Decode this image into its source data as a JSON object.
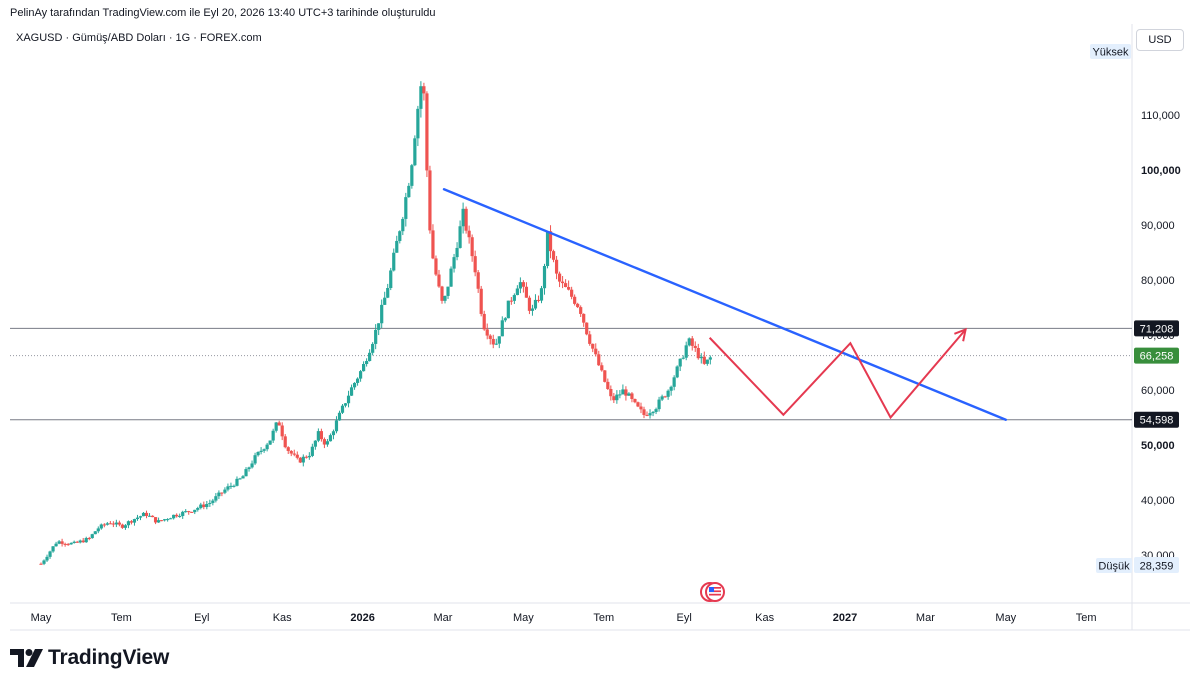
{
  "header": {
    "attribution": "PelinAy tarafından TradingView.com ile Eyl 20, 2026 13:40 UTC+3 tarihinde oluşturuldu",
    "symbol": "XAGUSD · Gümüş/ABD Doları · 1G · FOREX.com"
  },
  "currency_button": "USD",
  "logo_text": "TradingView",
  "colors": {
    "up": "#26a69a",
    "down": "#ef5350",
    "trendline": "#2962ff",
    "projection": "#e53950",
    "level_line": "#787b86",
    "last_price_bg": "#388e3c"
  },
  "chart_data": {
    "type": "candlestick",
    "y_axis": {
      "range": [
        24000,
        125000
      ],
      "ticks": [
        "30,000",
        "40,000",
        "50,000",
        "60,000",
        "70,000",
        "80,000",
        "90,000",
        "100,000",
        "110,000"
      ],
      "tick_values": [
        30000,
        40000,
        50000,
        60000,
        70000,
        80000,
        90000,
        100000,
        110000
      ],
      "bold_ticks": [
        "50,000",
        "100,000"
      ]
    },
    "x_axis": {
      "ticks": [
        "May",
        "Tem",
        "Eyl",
        "Kas",
        "2026",
        "Mar",
        "May",
        "Tem",
        "Eyl",
        "Kas",
        "2027",
        "Mar",
        "May",
        "Tem"
      ],
      "tick_months": [
        0,
        2,
        4,
        6,
        8,
        10,
        12,
        14,
        16,
        18,
        20,
        22,
        24,
        26
      ],
      "bold_ticks": [
        "2026",
        "2027"
      ],
      "start": "2025-05"
    },
    "price_series": [
      [
        0,
        28.4
      ],
      [
        0.4,
        32.5
      ],
      [
        0.8,
        32.0
      ],
      [
        1.2,
        33.0
      ],
      [
        1.4,
        34.8
      ],
      [
        1.7,
        36.0
      ],
      [
        2.0,
        35.2
      ],
      [
        2.3,
        36.5
      ],
      [
        2.6,
        37.5
      ],
      [
        2.9,
        36.0
      ],
      [
        3.3,
        37.2
      ],
      [
        3.7,
        38.0
      ],
      [
        4.2,
        39.5
      ],
      [
        4.6,
        42.0
      ],
      [
        5.0,
        44.0
      ],
      [
        5.3,
        47.5
      ],
      [
        5.7,
        51.0
      ],
      [
        5.9,
        54.5
      ],
      [
        6.1,
        49.5
      ],
      [
        6.4,
        47.0
      ],
      [
        6.7,
        48.5
      ],
      [
        6.9,
        52.0
      ],
      [
        7.1,
        50.0
      ],
      [
        7.4,
        55.0
      ],
      [
        7.7,
        60.0
      ],
      [
        8.0,
        64.0
      ],
      [
        8.3,
        70.0
      ],
      [
        8.6,
        78.0
      ],
      [
        8.8,
        85.0
      ],
      [
        9.0,
        92.0
      ],
      [
        9.2,
        100.0
      ],
      [
        9.35,
        110.0
      ],
      [
        9.5,
        118.0
      ],
      [
        9.6,
        100.0
      ],
      [
        9.7,
        86.0
      ],
      [
        9.85,
        80.0
      ],
      [
        10.0,
        75.0
      ],
      [
        10.3,
        85.0
      ],
      [
        10.5,
        92.0
      ],
      [
        10.8,
        82.0
      ],
      [
        11.0,
        72.0
      ],
      [
        11.3,
        68.0
      ],
      [
        11.6,
        75.0
      ],
      [
        11.9,
        80.0
      ],
      [
        12.2,
        74.0
      ],
      [
        12.45,
        78.0
      ],
      [
        12.6,
        88.0
      ],
      [
        12.85,
        80.0
      ],
      [
        13.1,
        78.0
      ],
      [
        13.4,
        75.0
      ],
      [
        13.6,
        70.0
      ],
      [
        13.8,
        66.0
      ],
      [
        14.0,
        62.0
      ],
      [
        14.2,
        58.0
      ],
      [
        14.5,
        60.0
      ],
      [
        14.8,
        57.0
      ],
      [
        15.0,
        55.5
      ],
      [
        15.3,
        57.0
      ],
      [
        15.6,
        60.0
      ],
      [
        15.9,
        65.0
      ],
      [
        16.1,
        69.0
      ],
      [
        16.3,
        67.0
      ],
      [
        16.5,
        64.5
      ],
      [
        16.7,
        66.26
      ]
    ],
    "last_price": "66,258",
    "levels": [
      {
        "label": "71,208",
        "value": 71208
      },
      {
        "label": "54,598",
        "value": 54598
      }
    ],
    "high": {
      "label": "Yüksek",
      "value": null
    },
    "low": {
      "label": "Düşük",
      "value_text": "28,359"
    },
    "trendline": {
      "from": [
        "2026-03",
        96500
      ],
      "to": [
        "2027-05",
        54598
      ]
    },
    "projection_path": [
      [
        "2026-09-20",
        69500
      ],
      [
        "2026-11-15",
        55500
      ],
      [
        "2027-01-05",
        68500
      ],
      [
        "2027-02-05",
        55000
      ],
      [
        "2027-04-01",
        71000
      ]
    ]
  }
}
